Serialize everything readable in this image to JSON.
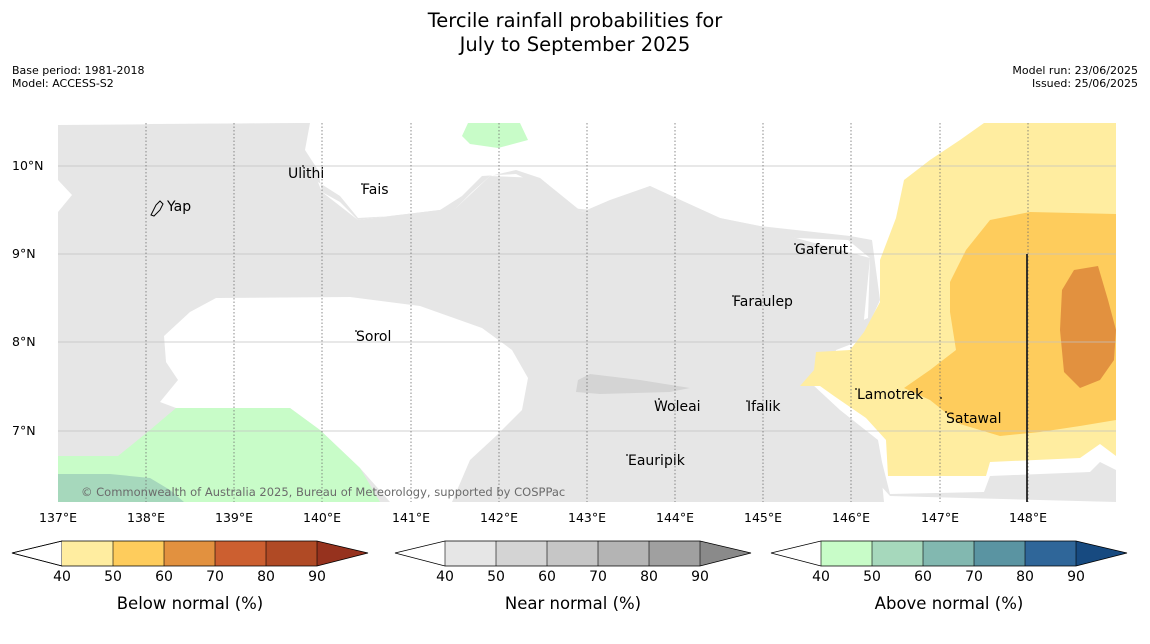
{
  "title_line1": "Tercile rainfall probabilities for",
  "title_line2": "July to September 2025",
  "meta_left": [
    "Base period: 1981-2018",
    "Model: ACCESS-S2"
  ],
  "meta_right": [
    "Model run: 23/06/2025",
    "Issued: 25/06/2025"
  ],
  "latitudes": [
    "10°N",
    "9°N",
    "8°N",
    "7°N"
  ],
  "longitudes": [
    "137°E",
    "138°E",
    "139°E",
    "140°E",
    "141°E",
    "142°E",
    "143°E",
    "144°E",
    "145°E",
    "146°E",
    "147°E",
    "148°E"
  ],
  "places": [
    "Yap",
    "Ulithi",
    "Fais",
    "Gaferut",
    "Faraulep",
    "Sorol",
    "Lamotrek",
    "Woleai",
    "Ifalik",
    "Satawal",
    "Eauripik"
  ],
  "copyright": "© Commonwealth of Australia 2025, Bureau of Meteorology, supported by COSPPac",
  "colorbars": [
    {
      "label": "Below normal (%)",
      "ticks": [
        "40",
        "50",
        "60",
        "70",
        "80",
        "90"
      ],
      "colors": [
        "#ffeda0",
        "#fecc5c",
        "#e2913f",
        "#cc5f30",
        "#b04a25",
        "#96321e"
      ]
    },
    {
      "label": "Near normal (%)",
      "ticks": [
        "40",
        "50",
        "60",
        "70",
        "80",
        "90"
      ],
      "colors": [
        "#e6e6e6",
        "#d4d4d4",
        "#c6c6c6",
        "#b4b4b4",
        "#a0a0a0",
        "#8a8a8a"
      ]
    },
    {
      "label": "Above normal (%)",
      "ticks": [
        "40",
        "50",
        "60",
        "70",
        "80",
        "90"
      ],
      "colors": [
        "#c8fcc8",
        "#a6d8bc",
        "#82b8b0",
        "#5a94a2",
        "#2f6699",
        "#174a80"
      ]
    }
  ]
}
